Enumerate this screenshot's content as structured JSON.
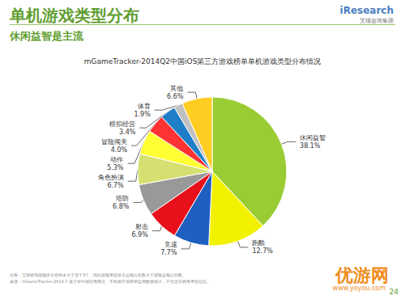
{
  "page": {
    "title": "单机游戏类型分布",
    "subtitle": "休闲益智是主流",
    "logo": "iResearch",
    "logo_sub": "艾瑞咨询集团",
    "notes": [
      "注释：艾瑞咨询游戏排名在样本大于等于3个，因此游戏类型排名总额占比数大于游戏总额占比数。",
      "来源：mGameTracker.2014.7.基于对中国应用商店、手机助手等榜单监测数据统计，不包含非榜单类型信息。"
    ],
    "page_number": "24",
    "watermark": "优游网",
    "watermark_url": "www.yoyou.com"
  },
  "chart_data": {
    "type": "pie",
    "title": "mGameTracker-2014Q2中国iOS第三方游戏榜单单机游戏类型分布情况",
    "categories": [
      "休闲益智",
      "跑酷",
      "竞速",
      "射击",
      "塔防",
      "角色扮演",
      "动作",
      "冒险闯关",
      "模拟经营",
      "体育",
      "其他"
    ],
    "values": [
      38.1,
      12.7,
      7.7,
      6.9,
      6.8,
      6.7,
      5.3,
      4.0,
      3.4,
      1.9,
      6.6
    ],
    "value_labels": [
      "38.1%",
      "12.7%",
      "7.7%",
      "6.9%",
      "6.8%",
      "6.7%",
      "5.3%",
      "4.0%",
      "3.4%",
      "1.9%",
      "6.6%"
    ],
    "colors": [
      "#99cc33",
      "#f2f200",
      "#1f5fbf",
      "#e8101a",
      "#999999",
      "#d6e070",
      "#ffff33",
      "#ff3333",
      "#1e7fc8",
      "#c0c0c0",
      "#ffcc22"
    ],
    "data_labels": true
  }
}
